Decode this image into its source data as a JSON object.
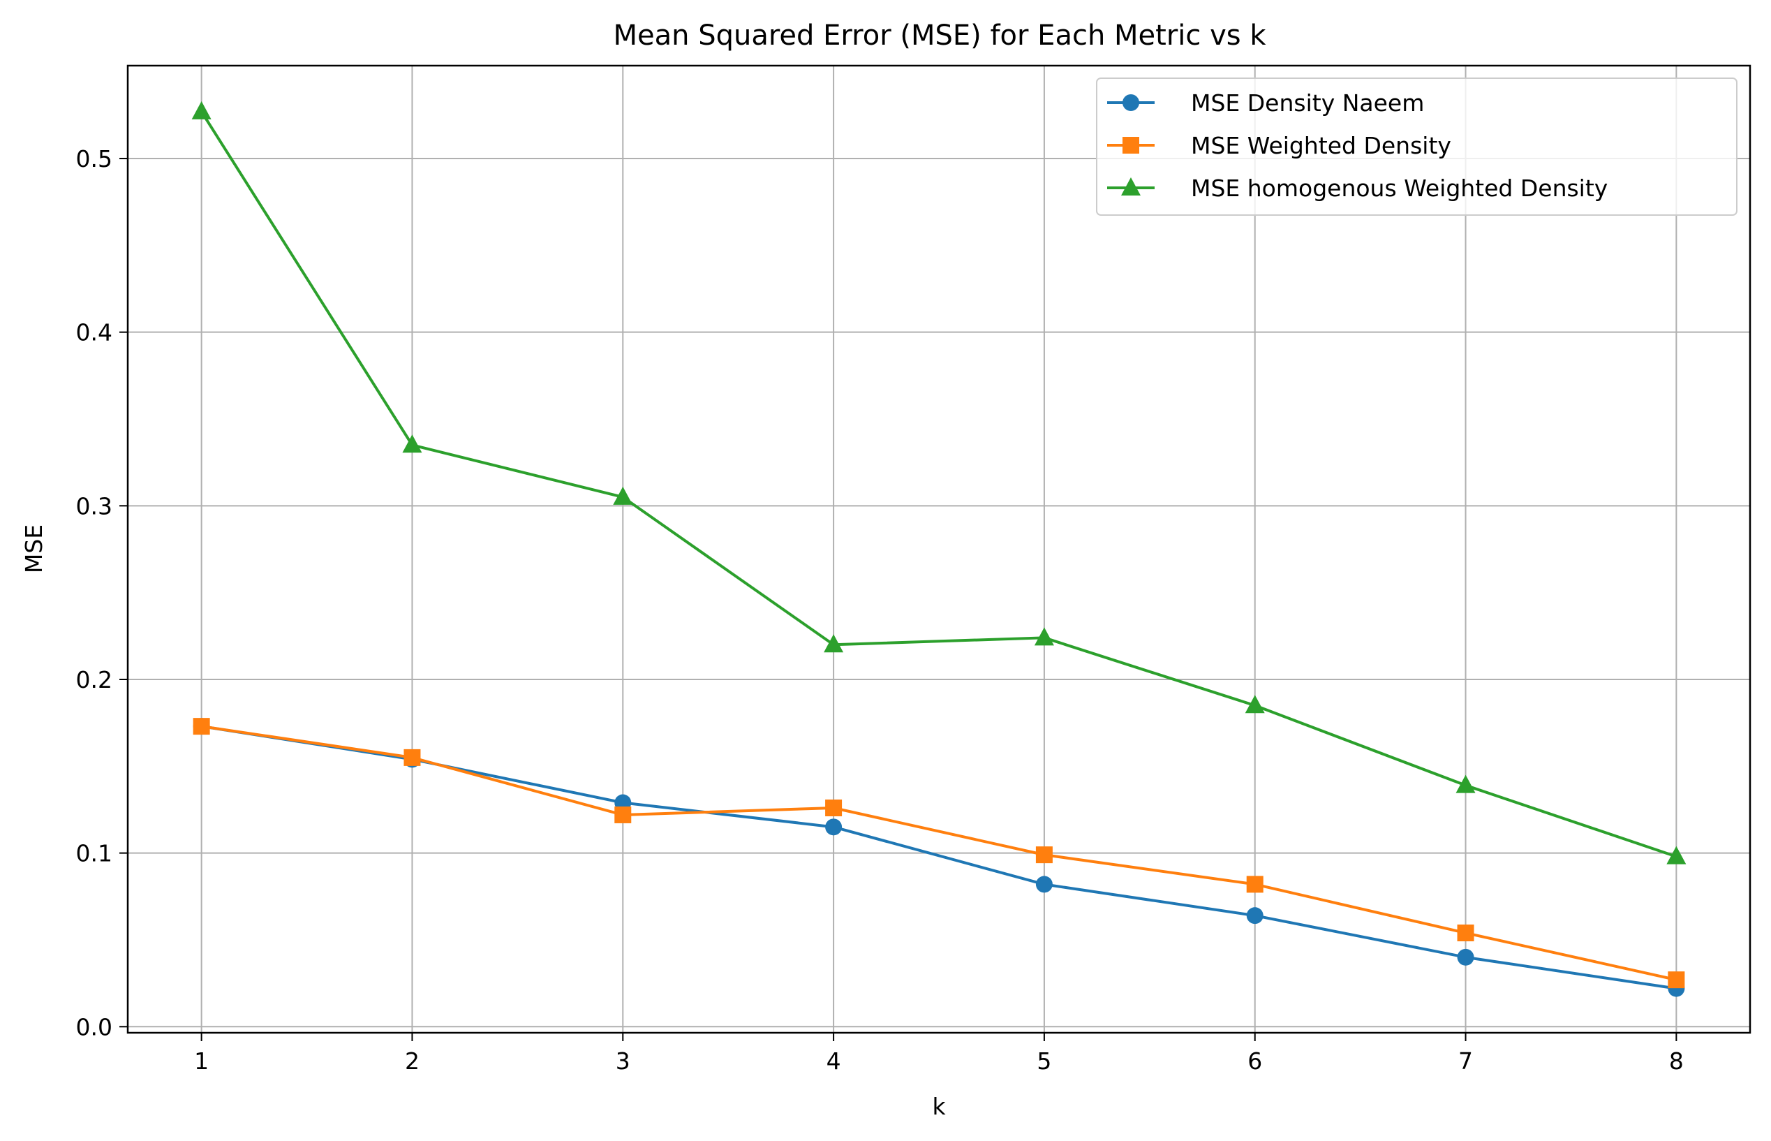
{
  "chart_data": {
    "type": "line",
    "title": "Mean Squared Error (MSE) for Each Metric vs k",
    "xlabel": "k",
    "ylabel": "MSE",
    "x": [
      1,
      2,
      3,
      4,
      5,
      6,
      7,
      8
    ],
    "xlim": [
      0.65,
      8.35
    ],
    "ylim": [
      -0.0035,
      0.5535
    ],
    "x_ticks": [
      "1",
      "2",
      "3",
      "4",
      "5",
      "6",
      "7",
      "8"
    ],
    "y_ticks": [
      "0.0",
      "0.1",
      "0.2",
      "0.3",
      "0.4",
      "0.5"
    ],
    "y_tick_values": [
      0.0,
      0.1,
      0.2,
      0.3,
      0.4,
      0.5
    ],
    "grid": true,
    "legend_position": "top-right",
    "series": [
      {
        "name": "MSE Density Naeem",
        "color": "#1f77b4",
        "marker": "circle",
        "values": [
          0.173,
          0.154,
          0.129,
          0.115,
          0.082,
          0.064,
          0.04,
          0.022
        ]
      },
      {
        "name": "MSE Weighted Density",
        "color": "#ff7f0e",
        "marker": "square",
        "values": [
          0.173,
          0.155,
          0.122,
          0.126,
          0.099,
          0.082,
          0.054,
          0.027
        ]
      },
      {
        "name": "MSE homogenous Weighted Density",
        "color": "#2ca02c",
        "marker": "triangle",
        "values": [
          0.527,
          0.335,
          0.305,
          0.22,
          0.224,
          0.185,
          0.139,
          0.098
        ]
      }
    ]
  }
}
